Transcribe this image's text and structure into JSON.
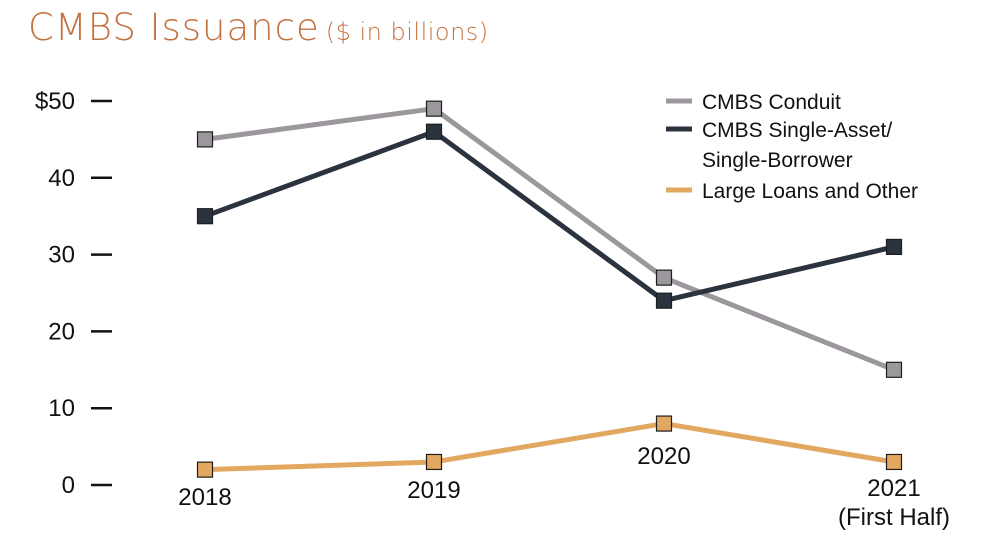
{
  "title": {
    "main": "CMBS Issuance",
    "sub": "($ in billions)",
    "color": "#c4713f"
  },
  "chart_data": {
    "type": "line",
    "categories": [
      "2018",
      "2019",
      "2020",
      "2021\n(First Half)"
    ],
    "ylim": [
      0,
      50
    ],
    "yticks": [
      {
        "value": 50,
        "label": "$50"
      },
      {
        "value": 40,
        "label": "40"
      },
      {
        "value": 30,
        "label": "30"
      },
      {
        "value": 20,
        "label": "20"
      },
      {
        "value": 10,
        "label": "10"
      },
      {
        "value": 0,
        "label": "0"
      }
    ],
    "grid": false,
    "legend": "top-right",
    "series": [
      {
        "name": "CMBS Conduit",
        "color": "#9b979c",
        "values": [
          45,
          49,
          27,
          15
        ]
      },
      {
        "name": "CMBS Single-Asset/\nSingle-Borrower",
        "color": "#2b333f",
        "values": [
          35,
          46,
          24,
          31
        ]
      },
      {
        "name": "Large Loans and Other",
        "color": "#e2a85f",
        "values": [
          2,
          3,
          8,
          3
        ]
      }
    ]
  }
}
